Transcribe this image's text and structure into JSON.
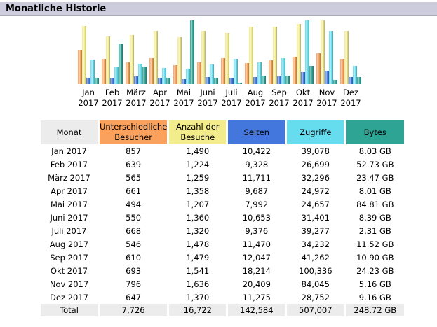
{
  "title": "Monatliche Historie",
  "colors": {
    "visitors": "#f9a15d",
    "visits": "#f2ec8d",
    "pages": "#4477dd",
    "hits": "#66ddee",
    "bytes": "#2ea495"
  },
  "headers": [
    "Monat",
    "Unterschiedliche Besucher",
    "Anzahl der Besuche",
    "Seiten",
    "Zugriffe",
    "Bytes"
  ],
  "months": [
    {
      "m": "Jan",
      "y": "2017",
      "label": "Jan 2017",
      "visitors": "857",
      "visits": "1,490",
      "pages": "10,422",
      "hits": "39,078",
      "bytes": "8.03 GB"
    },
    {
      "m": "Feb",
      "y": "2017",
      "label": "Feb 2017",
      "visitors": "639",
      "visits": "1,224",
      "pages": "9,328",
      "hits": "26,699",
      "bytes": "52.73 GB"
    },
    {
      "m": "März",
      "y": "2017",
      "label": "März 2017",
      "visitors": "565",
      "visits": "1,259",
      "pages": "11,711",
      "hits": "32,296",
      "bytes": "23.47 GB"
    },
    {
      "m": "Apr",
      "y": "2017",
      "label": "Apr 2017",
      "visitors": "661",
      "visits": "1,358",
      "pages": "9,687",
      "hits": "24,972",
      "bytes": "8.01 GB"
    },
    {
      "m": "Mai",
      "y": "2017",
      "label": "Mai 2017",
      "visitors": "494",
      "visits": "1,207",
      "pages": "7,992",
      "hits": "24,657",
      "bytes": "84.81 GB"
    },
    {
      "m": "Juni",
      "y": "2017",
      "label": "Juni 2017",
      "visitors": "550",
      "visits": "1,360",
      "pages": "10,653",
      "hits": "31,401",
      "bytes": "8.39 GB"
    },
    {
      "m": "Juli",
      "y": "2017",
      "label": "Juli 2017",
      "visitors": "668",
      "visits": "1,320",
      "pages": "9,376",
      "hits": "39,277",
      "bytes": "2.31 GB"
    },
    {
      "m": "Aug",
      "y": "2017",
      "label": "Aug 2017",
      "visitors": "546",
      "visits": "1,478",
      "pages": "11,470",
      "hits": "34,232",
      "bytes": "11.52 GB"
    },
    {
      "m": "Sep",
      "y": "2017",
      "label": "Sep 2017",
      "visitors": "610",
      "visits": "1,479",
      "pages": "12,047",
      "hits": "41,262",
      "bytes": "10.90 GB"
    },
    {
      "m": "Okt",
      "y": "2017",
      "label": "Okt 2017",
      "visitors": "693",
      "visits": "1,541",
      "pages": "18,214",
      "hits": "100,336",
      "bytes": "24.23 GB"
    },
    {
      "m": "Nov",
      "y": "2017",
      "label": "Nov 2017",
      "visitors": "796",
      "visits": "1,636",
      "pages": "20,409",
      "hits": "84,045",
      "bytes": "5.16 GB"
    },
    {
      "m": "Dez",
      "y": "2017",
      "label": "Dez 2017",
      "visitors": "647",
      "visits": "1,370",
      "pages": "11,275",
      "hits": "28,752",
      "bytes": "9.16 GB"
    }
  ],
  "total": {
    "label": "Total",
    "visitors": "7,726",
    "visits": "16,722",
    "pages": "142,584",
    "hits": "507,007",
    "bytes": "248.72 GB"
  }
}
